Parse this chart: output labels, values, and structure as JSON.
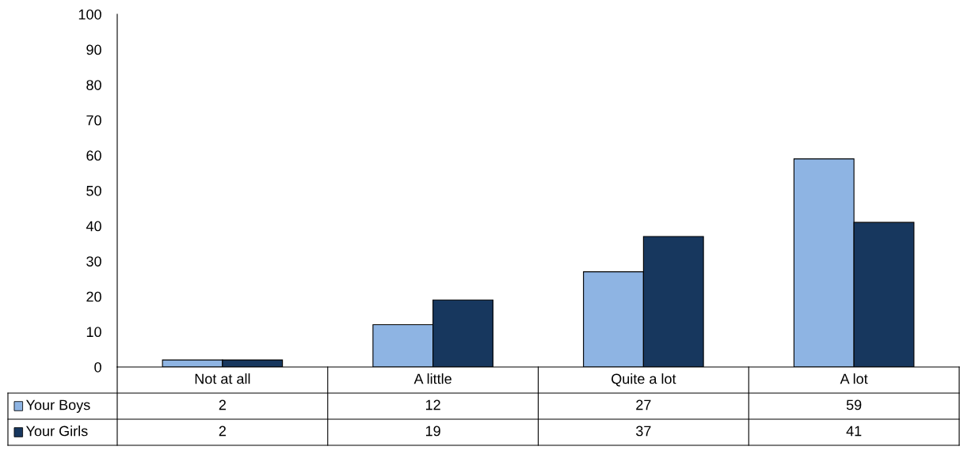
{
  "chart_data": {
    "type": "bar",
    "categories": [
      "Not at all",
      "A little",
      "Quite a lot",
      "A lot"
    ],
    "series": [
      {
        "name": "Your Boys",
        "color": "#8eb4e3",
        "values": [
          2,
          12,
          27,
          59
        ]
      },
      {
        "name": "Your Girls",
        "color": "#17375e",
        "values": [
          2,
          19,
          37,
          41
        ]
      }
    ],
    "ylim": [
      0,
      100
    ],
    "yticks": [
      0,
      10,
      20,
      30,
      40,
      50,
      60,
      70,
      80,
      90,
      100
    ],
    "grid": false,
    "legend": "bottom",
    "data_labels": true
  }
}
